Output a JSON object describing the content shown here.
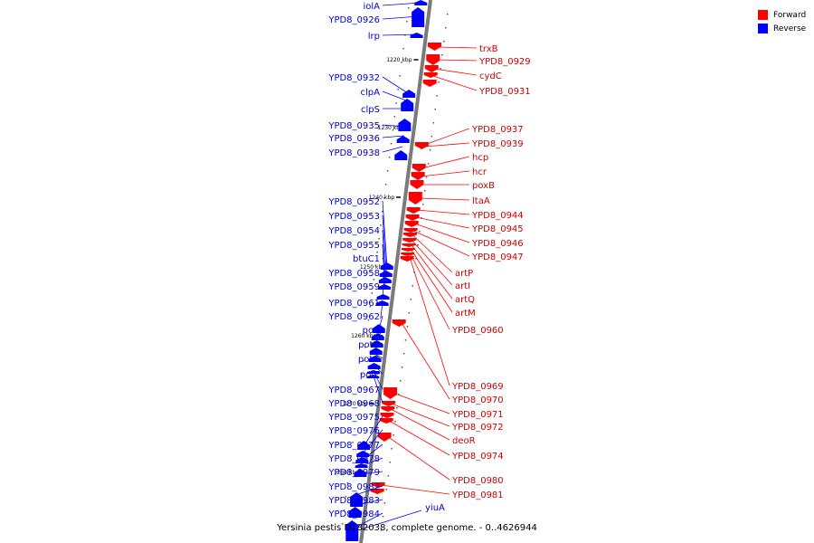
{
  "legend": [
    {
      "label": "Forward",
      "color": "#ff0000"
    },
    {
      "label": "Reverse",
      "color": "#0000ff"
    }
  ],
  "caption": "Yersinia pestis D182038, complete genome. - 0..4626944",
  "ticks": [
    "1220 kbp",
    "1230 kbp",
    "1240 kbp",
    "1250 kbp",
    "1260 kbp",
    "1270 kbp",
    "1280 kbp"
  ],
  "reverse_genes": [
    "iolA",
    "YPD8_0926",
    "lrp",
    "YPD8_0932",
    "clpA",
    "clpS",
    "YPD8_0935",
    "YPD8_0936",
    "YPD8_0938",
    "YPD8_0952",
    "YPD8_0953",
    "YPD8_0954",
    "YPD8_0955",
    "btuC1",
    "YPD8_0958",
    "YPD8_0959",
    "YPD8_0961",
    "YPD8_0962",
    "potI",
    "potH",
    "potG",
    "potF",
    "YPD8_0967",
    "YPD8_0968",
    "YPD8_0975",
    "YPD8_0976",
    "YPD8_0977",
    "YPD8_0978",
    "YPD8_0979",
    "YPD8_0982",
    "YPD8_0983",
    "YPD8_0984",
    "yiuA"
  ],
  "forward_genes": [
    "trxB",
    "YPD8_0929",
    "cydC",
    "YPD8_0931",
    "YPD8_0937",
    "YPD8_0939",
    "hcp",
    "hcr",
    "poxB",
    "ltaA",
    "YPD8_0944",
    "YPD8_0945",
    "YPD8_0946",
    "YPD8_0947",
    "artP",
    "artI",
    "artQ",
    "artM",
    "YPD8_0960",
    "YPD8_0969",
    "YPD8_0970",
    "YPD8_0971",
    "YPD8_0972",
    "deoR",
    "YPD8_0974",
    "YPD8_0980",
    "YPD8_0981"
  ]
}
